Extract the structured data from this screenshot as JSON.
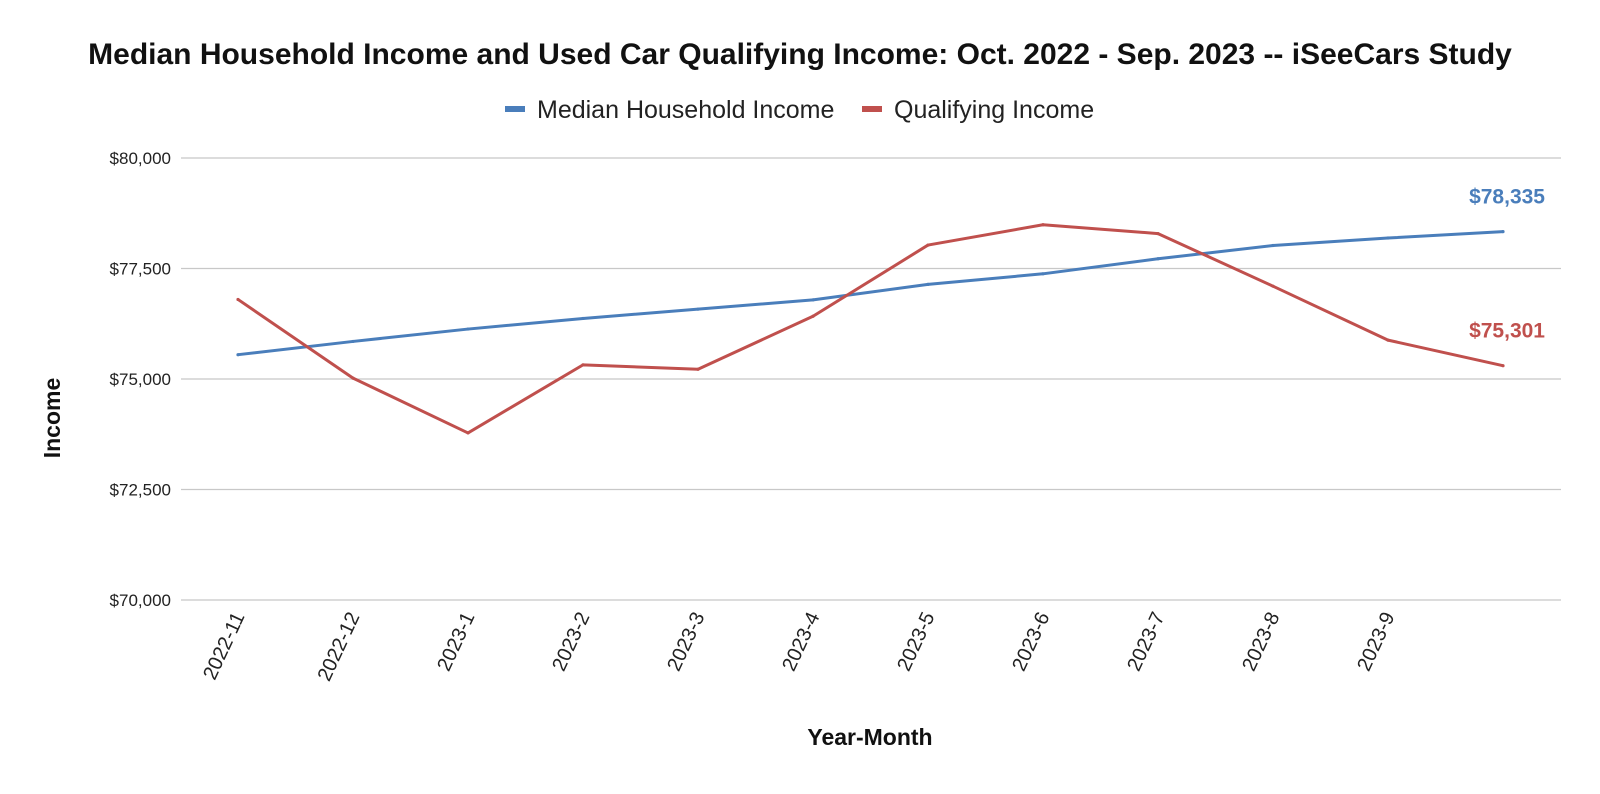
{
  "colors": {
    "median": "#4a7ebb",
    "qualifying": "#c0504d",
    "grid": "#c8c8c8",
    "text": "#222222"
  },
  "chart_data": {
    "type": "line",
    "title": "Median Household Income and Used Car Qualifying Income: Oct. 2022 - Sep. 2023 -- iSeeCars Study",
    "xlabel": "Year-Month",
    "ylabel": "Income",
    "ylim": [
      70000,
      80000
    ],
    "yticks": [
      70000,
      72500,
      75000,
      77500,
      80000
    ],
    "ytick_labels": [
      "$70,000",
      "$72,500",
      "$75,000",
      "$77,500",
      "$80,000"
    ],
    "x_tick_labels": [
      "2022-11",
      "2022-12",
      "2023-1",
      "2023-2",
      "2023-3",
      "2023-4",
      "2023-5",
      "2023-6",
      "2023-7",
      "2023-8",
      "2023-9"
    ],
    "point_count": 12,
    "grid": true,
    "legend_position": "top-center",
    "series": [
      {
        "name": "Median Household Income",
        "color_key": "median",
        "values": [
          75550,
          75850,
          76130,
          76370,
          76580,
          76790,
          77140,
          77380,
          77720,
          78020,
          78190,
          78335
        ],
        "end_label": "$78,335"
      },
      {
        "name": "Qualifying Income",
        "color_key": "qualifying",
        "values": [
          76800,
          75020,
          73780,
          75320,
          75220,
          76420,
          78030,
          78490,
          78290,
          77100,
          75880,
          75301
        ],
        "end_label": "$75,301"
      }
    ]
  }
}
